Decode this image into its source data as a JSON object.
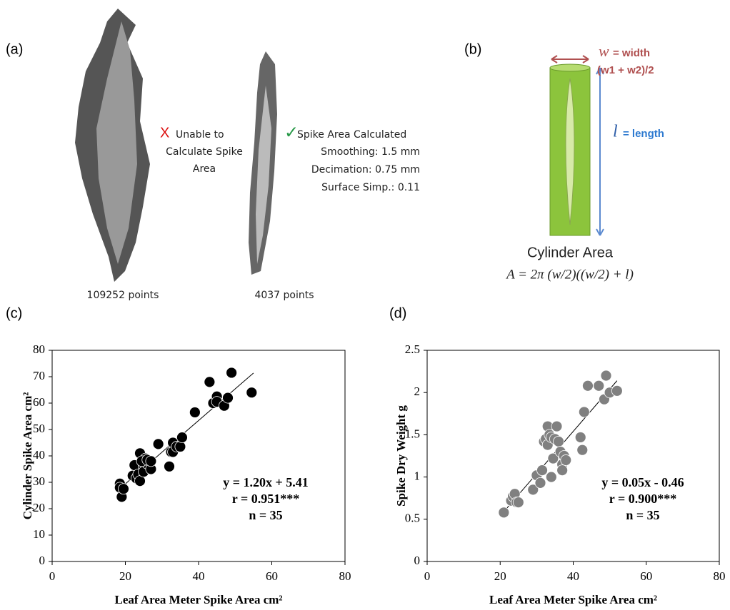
{
  "panel_a": {
    "label": "(a)",
    "fail_mark": "X",
    "fail_lines": [
      "Unable to",
      "Calculate Spike",
      "Area"
    ],
    "ok_mark": "✓",
    "ok_lines": [
      "Spike Area Calculated",
      "Smoothing: 1.5 mm",
      "Decimation: 0.75 mm",
      "Surface Simp.: 0.11"
    ],
    "left_count": "109252 points",
    "right_count": "4037 points"
  },
  "panel_b": {
    "label": "(b)",
    "width_symbol": "w",
    "width_text": "= width",
    "width_formula": "(w1 + w2)/2",
    "length_symbol": "l",
    "length_text": "=  length",
    "title": "Cylinder Area",
    "formula": "A = 2π (w/2)((w/2) + l)"
  },
  "chart_data": [
    {
      "type": "scatter",
      "label": "(c)",
      "xlabel": "Leaf Area Meter Spike Area cm²",
      "ylabel": "Cylinder Spike Area cm²",
      "color": "#000000",
      "x": [
        18.5,
        18.5,
        19,
        19.5,
        22,
        22.5,
        23,
        23.5,
        24,
        24,
        25,
        25,
        25.5,
        26,
        27,
        29,
        32,
        32.5,
        33,
        33,
        34,
        35,
        35.5,
        39,
        43,
        44,
        45,
        45,
        47,
        48,
        49,
        54.5,
        24.5,
        26,
        27
      ],
      "values": [
        29.5,
        28,
        24.5,
        27.5,
        32.5,
        36.5,
        31.5,
        33,
        41,
        30.5,
        36,
        34,
        39,
        37,
        35,
        44.5,
        36,
        41.5,
        45,
        41.5,
        43.5,
        43.5,
        47,
        56.5,
        68,
        60,
        62.5,
        60.5,
        59,
        62,
        71.5,
        64,
        38,
        38.5,
        38
      ],
      "trend": {
        "x": [
          18.5,
          55
        ],
        "values": [
          27.6,
          71.4
        ]
      },
      "annotations": [
        "y = 1.20x + 5.41",
        "r = 0.951***",
        "n = 35"
      ],
      "xlim": [
        0,
        80
      ],
      "xticks": [
        0,
        20,
        40,
        60,
        80
      ],
      "ylim": [
        0,
        80
      ],
      "yticks": [
        0,
        10,
        20,
        30,
        40,
        50,
        60,
        70,
        80
      ]
    },
    {
      "type": "scatter",
      "label": "(d)",
      "xlabel": "Leaf Area Meter Spike Area cm²",
      "ylabel": "Spike Dry Weight g",
      "color": "#808080",
      "x": [
        21,
        23,
        23.5,
        24,
        24.5,
        25,
        29,
        30,
        31,
        31.5,
        32,
        32.5,
        33,
        33,
        33.5,
        34,
        34,
        34.5,
        35,
        35.5,
        36,
        36.5,
        37,
        37,
        37.5,
        38,
        42,
        42.5,
        43,
        44,
        47,
        48.5,
        49,
        50,
        52
      ],
      "values": [
        0.58,
        0.72,
        0.77,
        0.8,
        0.7,
        0.7,
        0.85,
        1.02,
        0.93,
        1.08,
        1.42,
        1.45,
        1.38,
        1.6,
        1.5,
        1.0,
        1.47,
        1.22,
        1.45,
        1.6,
        1.42,
        1.3,
        1.15,
        1.08,
        1.25,
        1.2,
        1.47,
        1.32,
        1.77,
        2.08,
        2.08,
        1.92,
        2.2,
        2.0,
        2.02
      ],
      "trend": {
        "x": [
          21,
          52
        ],
        "values": [
          0.59,
          2.14
        ]
      },
      "annotations": [
        "y = 0.05x - 0.46",
        "r  = 0.900***",
        "n = 35"
      ],
      "xlim": [
        0,
        80
      ],
      "xticks": [
        0,
        20,
        40,
        60,
        80
      ],
      "ylim": [
        0,
        2.5
      ],
      "yticks": [
        0,
        0.5,
        1,
        1.5,
        2,
        2.5
      ]
    }
  ]
}
